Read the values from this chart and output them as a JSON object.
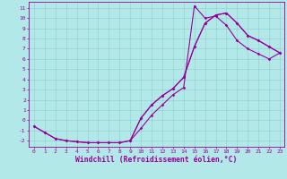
{
  "xlabel": "Windchill (Refroidissement éolien,°C)",
  "bg_color": "#b2e8e8",
  "line_color": "#990099",
  "xlim_min": -0.5,
  "xlim_max": 23.4,
  "ylim_min": -2.6,
  "ylim_max": 11.6,
  "xticks": [
    0,
    1,
    2,
    3,
    4,
    5,
    6,
    7,
    8,
    9,
    10,
    11,
    12,
    13,
    14,
    15,
    16,
    17,
    18,
    19,
    20,
    21,
    22,
    23
  ],
  "yticks": [
    -2,
    -1,
    0,
    1,
    2,
    3,
    4,
    5,
    6,
    7,
    8,
    9,
    10,
    11
  ],
  "line1_x": [
    0,
    1,
    2,
    3,
    4,
    5,
    6,
    7,
    8,
    9,
    10,
    11,
    12,
    13,
    14,
    15,
    16,
    17,
    18,
    19,
    20,
    21,
    22,
    23
  ],
  "line1_y": [
    -0.6,
    -1.2,
    -1.8,
    -2.0,
    -2.1,
    -2.2,
    -2.2,
    -2.2,
    -2.2,
    -2.0,
    0.2,
    1.5,
    2.4,
    3.1,
    4.2,
    7.2,
    9.5,
    10.3,
    10.5,
    9.5,
    8.3,
    7.8,
    7.2,
    6.6
  ],
  "line2_x": [
    0,
    1,
    2,
    3,
    4,
    5,
    6,
    7,
    8,
    9,
    10,
    11,
    12,
    13,
    14,
    15,
    16,
    17,
    18,
    19,
    20,
    21,
    22,
    23
  ],
  "line2_y": [
    -0.6,
    -1.2,
    -1.8,
    -2.0,
    -2.1,
    -2.2,
    -2.2,
    -2.2,
    -2.2,
    -2.0,
    -0.8,
    0.5,
    1.5,
    2.5,
    3.2,
    11.2,
    10.0,
    10.2,
    9.3,
    7.8,
    7.0,
    6.5,
    6.0,
    6.6
  ],
  "line3_x": [
    9,
    10,
    11,
    12,
    13,
    14,
    15,
    16,
    17,
    18,
    19,
    20,
    21,
    22,
    23
  ],
  "line3_y": [
    -2.0,
    0.2,
    1.5,
    2.4,
    3.1,
    4.2,
    7.2,
    9.5,
    10.3,
    10.5,
    9.5,
    8.3,
    7.8,
    7.2,
    6.6
  ],
  "grid_color": "#8ecece",
  "tick_fontsize": 4.5,
  "label_fontsize": 5.8
}
